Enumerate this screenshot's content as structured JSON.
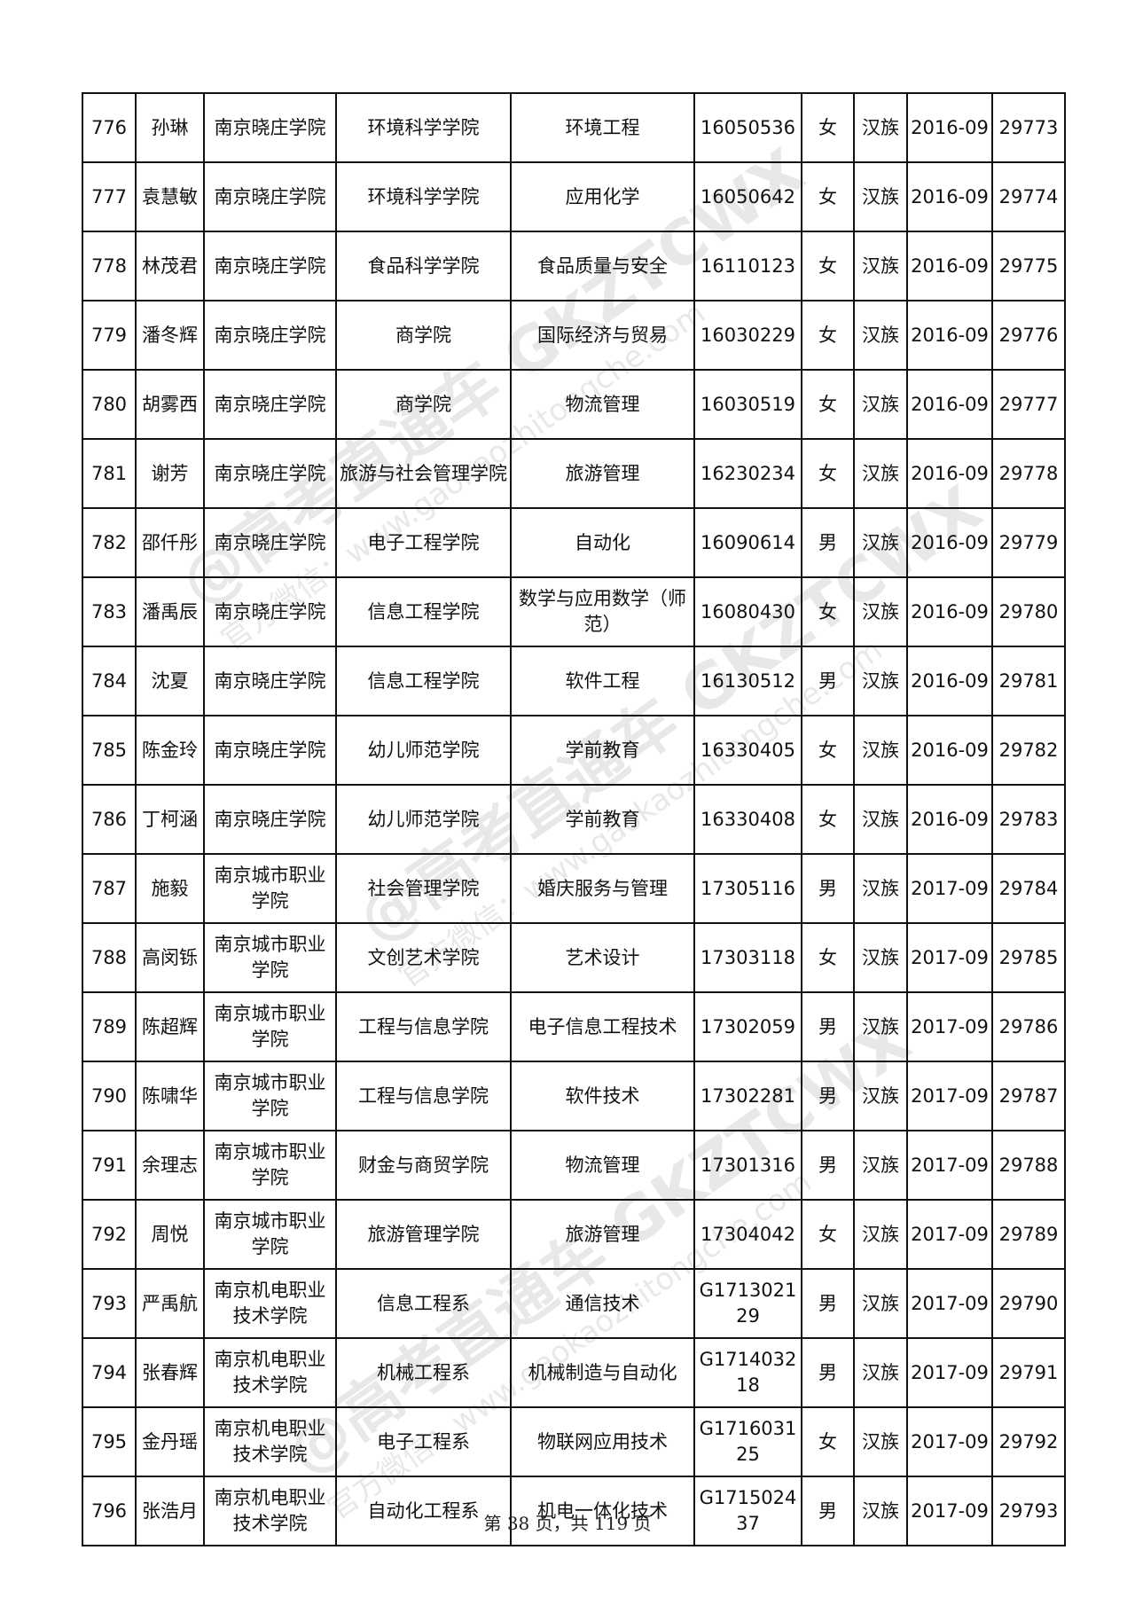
{
  "table": {
    "rows": [
      [
        "776",
        "孙琳",
        "南京晓庄学院",
        "环境科学学院",
        "环境工程",
        "16050536",
        "女",
        "汉族",
        "2016-09",
        "29773"
      ],
      [
        "777",
        "袁慧敏",
        "南京晓庄学院",
        "环境科学学院",
        "应用化学",
        "16050642",
        "女",
        "汉族",
        "2016-09",
        "29774"
      ],
      [
        "778",
        "林茂君",
        "南京晓庄学院",
        "食品科学学院",
        "食品质量与安全",
        "16110123",
        "女",
        "汉族",
        "2016-09",
        "29775"
      ],
      [
        "779",
        "潘冬辉",
        "南京晓庄学院",
        "商学院",
        "国际经济与贸易",
        "16030229",
        "女",
        "汉族",
        "2016-09",
        "29776"
      ],
      [
        "780",
        "胡雾西",
        "南京晓庄学院",
        "商学院",
        "物流管理",
        "16030519",
        "女",
        "汉族",
        "2016-09",
        "29777"
      ],
      [
        "781",
        "谢芳",
        "南京晓庄学院",
        "旅游与社会管理学院",
        "旅游管理",
        "16230234",
        "女",
        "汉族",
        "2016-09",
        "29778"
      ],
      [
        "782",
        "邵仟彤",
        "南京晓庄学院",
        "电子工程学院",
        "自动化",
        "16090614",
        "男",
        "汉族",
        "2016-09",
        "29779"
      ],
      [
        "783",
        "潘禹辰",
        "南京晓庄学院",
        "信息工程学院",
        "数学与应用数学（师范）",
        "16080430",
        "女",
        "汉族",
        "2016-09",
        "29780"
      ],
      [
        "784",
        "沈夏",
        "南京晓庄学院",
        "信息工程学院",
        "软件工程",
        "16130512",
        "男",
        "汉族",
        "2016-09",
        "29781"
      ],
      [
        "785",
        "陈金玲",
        "南京晓庄学院",
        "幼儿师范学院",
        "学前教育",
        "16330405",
        "女",
        "汉族",
        "2016-09",
        "29782"
      ],
      [
        "786",
        "丁柯涵",
        "南京晓庄学院",
        "幼儿师范学院",
        "学前教育",
        "16330408",
        "女",
        "汉族",
        "2016-09",
        "29783"
      ],
      [
        "787",
        "施毅",
        "南京城市职业学院",
        "社会管理学院",
        "婚庆服务与管理",
        "17305116",
        "男",
        "汉族",
        "2017-09",
        "29784"
      ],
      [
        "788",
        "高闵铄",
        "南京城市职业学院",
        "文创艺术学院",
        "艺术设计",
        "17303118",
        "女",
        "汉族",
        "2017-09",
        "29785"
      ],
      [
        "789",
        "陈超辉",
        "南京城市职业学院",
        "工程与信息学院",
        "电子信息工程技术",
        "17302059",
        "男",
        "汉族",
        "2017-09",
        "29786"
      ],
      [
        "790",
        "陈啸华",
        "南京城市职业学院",
        "工程与信息学院",
        "软件技术",
        "17302281",
        "男",
        "汉族",
        "2017-09",
        "29787"
      ],
      [
        "791",
        "余理志",
        "南京城市职业学院",
        "财金与商贸学院",
        "物流管理",
        "17301316",
        "男",
        "汉族",
        "2017-09",
        "29788"
      ],
      [
        "792",
        "周悦",
        "南京城市职业学院",
        "旅游管理学院",
        "旅游管理",
        "17304042",
        "女",
        "汉族",
        "2017-09",
        "29789"
      ],
      [
        "793",
        "严禹航",
        "南京机电职业技术学院",
        "信息工程系",
        "通信技术",
        "G171302129",
        "男",
        "汉族",
        "2017-09",
        "29790"
      ],
      [
        "794",
        "张春辉",
        "南京机电职业技术学院",
        "机械工程系",
        "机械制造与自动化",
        "G171403218",
        "男",
        "汉族",
        "2017-09",
        "29791"
      ],
      [
        "795",
        "金丹瑶",
        "南京机电职业技术学院",
        "电子工程系",
        "物联网应用技术",
        "G171603125",
        "女",
        "汉族",
        "2017-09",
        "29792"
      ],
      [
        "796",
        "张浩月",
        "南京机电职业技术学院",
        "自动化工程系",
        "机电一体化技术",
        "G171502437",
        "男",
        "汉族",
        "2017-09",
        "29793"
      ]
    ]
  },
  "footer": "第 38 页，共 119 页",
  "watermark": {
    "line1": "@高考直通车 GKZTCWX",
    "line2": "官方微信：www.gaokaozhitongche.com"
  }
}
